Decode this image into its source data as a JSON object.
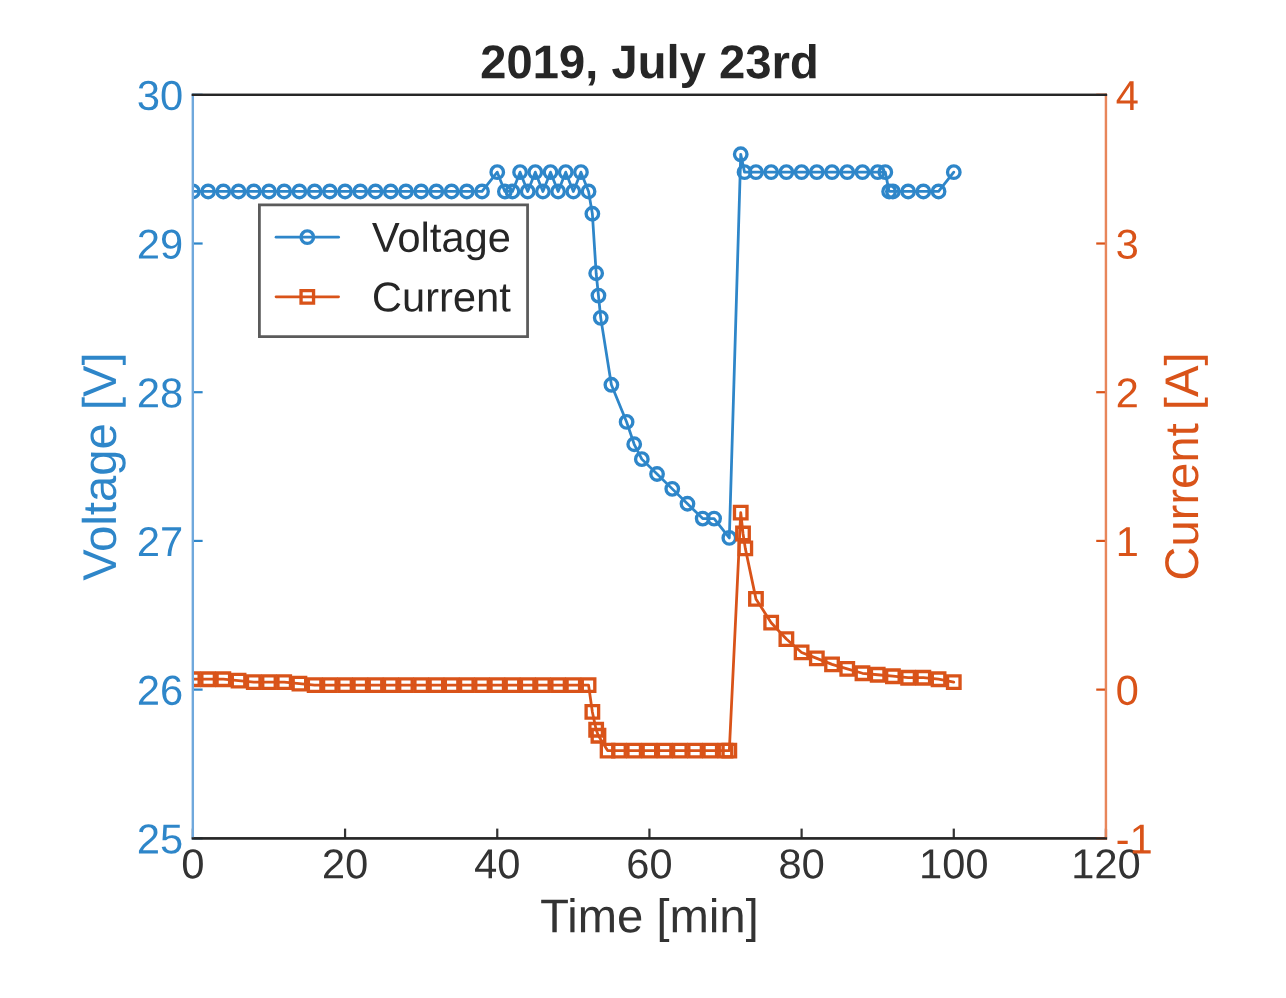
{
  "chart_data": {
    "type": "line",
    "title": "2019, July 23rd",
    "xlabel": "Time [min]",
    "ylabel": "Voltage [V]",
    "y2label": "Current [A]",
    "xlim": [
      0,
      120
    ],
    "xticks": [
      0,
      20,
      40,
      60,
      80,
      100,
      120
    ],
    "ylim": [
      25,
      30
    ],
    "yticks": [
      25,
      26,
      27,
      28,
      29,
      30
    ],
    "y2lim": [
      -1,
      4
    ],
    "y2ticks": [
      -1,
      0,
      1,
      2,
      3,
      4
    ],
    "legend": "top left",
    "grid": false,
    "series": [
      {
        "name": "Voltage",
        "color": "#2e86c9",
        "marker": "circle",
        "x": [
          0,
          2,
          4,
          6,
          8,
          10,
          12,
          14,
          16,
          18,
          20,
          22,
          24,
          26,
          28,
          30,
          32,
          34,
          36,
          38,
          40,
          41,
          42,
          43,
          44,
          45,
          46,
          47,
          48,
          49,
          50,
          51,
          52,
          52.5,
          53,
          53.3,
          53.6,
          55,
          57,
          58,
          59,
          61,
          63,
          65,
          67,
          68.5,
          70.5,
          72,
          72.5,
          74,
          76,
          78,
          80,
          82,
          84,
          86,
          88,
          90,
          91,
          91.5,
          92,
          94,
          96,
          98,
          100
        ],
        "values": [
          29.35,
          29.35,
          29.35,
          29.35,
          29.35,
          29.35,
          29.35,
          29.35,
          29.35,
          29.35,
          29.35,
          29.35,
          29.35,
          29.35,
          29.35,
          29.35,
          29.35,
          29.35,
          29.35,
          29.35,
          29.48,
          29.35,
          29.35,
          29.48,
          29.35,
          29.48,
          29.35,
          29.48,
          29.35,
          29.48,
          29.35,
          29.48,
          29.35,
          29.2,
          28.8,
          28.65,
          28.5,
          28.05,
          27.8,
          27.65,
          27.55,
          27.45,
          27.35,
          27.25,
          27.15,
          27.15,
          27.02,
          29.6,
          29.48,
          29.48,
          29.48,
          29.48,
          29.48,
          29.48,
          29.48,
          29.48,
          29.48,
          29.48,
          29.48,
          29.35,
          29.35,
          29.35,
          29.35,
          29.35,
          29.48
        ]
      },
      {
        "name": "Current",
        "color": "#d95319",
        "marker": "square",
        "axis": "y2",
        "x": [
          0,
          2,
          4,
          6,
          8,
          10,
          12,
          14,
          16,
          18,
          20,
          22,
          24,
          26,
          28,
          30,
          32,
          34,
          36,
          38,
          40,
          42,
          44,
          46,
          48,
          50,
          52,
          52.5,
          53,
          53.3,
          54.5,
          56,
          58,
          60,
          62,
          64,
          66,
          68,
          70,
          70.5,
          72,
          72.3,
          72.6,
          74,
          76,
          78,
          80,
          82,
          84,
          86,
          88,
          90,
          92,
          94,
          96,
          98,
          100
        ],
        "values": [
          0.07,
          0.07,
          0.07,
          0.06,
          0.05,
          0.05,
          0.05,
          0.04,
          0.03,
          0.03,
          0.03,
          0.03,
          0.03,
          0.03,
          0.03,
          0.03,
          0.03,
          0.03,
          0.03,
          0.03,
          0.03,
          0.03,
          0.03,
          0.03,
          0.03,
          0.03,
          0.03,
          -0.15,
          -0.27,
          -0.31,
          -0.41,
          -0.41,
          -0.41,
          -0.41,
          -0.41,
          -0.41,
          -0.41,
          -0.41,
          -0.41,
          -0.41,
          1.19,
          1.05,
          0.95,
          0.61,
          0.45,
          0.34,
          0.25,
          0.21,
          0.17,
          0.14,
          0.11,
          0.1,
          0.09,
          0.08,
          0.08,
          0.07,
          0.05
        ]
      }
    ]
  }
}
